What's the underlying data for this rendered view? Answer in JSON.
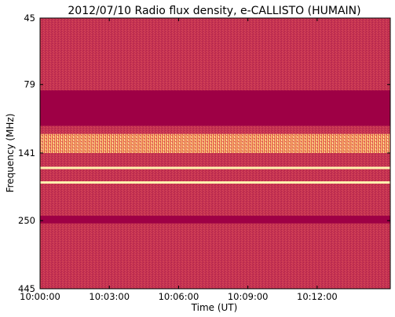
{
  "chart_data": {
    "type": "heatmap",
    "title": "2012/07/10  Radio flux density, e-CALLISTO (HUMAIN)",
    "xlabel": "Time (UT)",
    "ylabel": "Frequency (MHz)",
    "x_ticks": [
      "10:00:00",
      "10:03:00",
      "10:06:00",
      "10:09:00",
      "10:12:00"
    ],
    "y_ticks": [
      "45",
      "79",
      "141",
      "250",
      "445"
    ],
    "xlim": [
      "10:00:00",
      "10:15:10"
    ],
    "ylim": [
      445,
      45
    ],
    "y_scale": "log",
    "grid": false,
    "colormap": "magenta-to-yellow (heat)",
    "colors": {
      "low": "#9e0045",
      "mid": "#c8294f",
      "high": "#f7c36a",
      "peak": "#fff3b0"
    },
    "features": [
      {
        "label": "strong emission band",
        "freq_range_mhz": [
          120,
          141
        ]
      },
      {
        "label": "low-level band",
        "freq_range_mhz": [
          83,
          112
        ]
      },
      {
        "label": "low-level band",
        "freq_range_mhz": [
          240,
          256
        ]
      },
      {
        "label": "persistent emission line",
        "freq_mhz": 160
      },
      {
        "label": "persistent emission line",
        "freq_mhz": 181
      }
    ]
  }
}
